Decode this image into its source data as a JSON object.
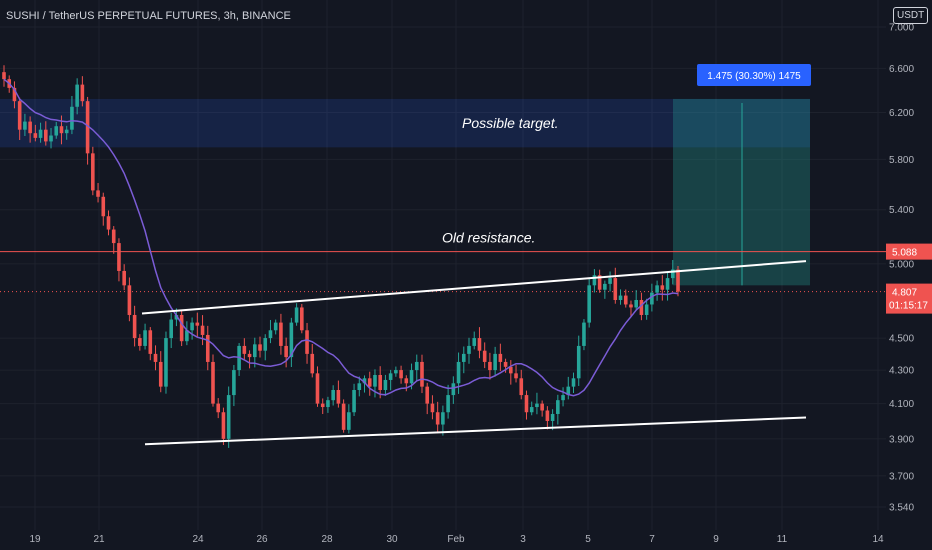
{
  "header": {
    "title": "SUSHI / TetherUS PERPETUAL FUTURES, 3h, BINANCE",
    "unit": "USDT"
  },
  "colors": {
    "background": "#131722",
    "up": "#26a69a",
    "down": "#ef5350",
    "ma": "#7b5cd6",
    "resistance": "#ef5350",
    "target_zone": "#2962ff",
    "projection_zone": "#26a69a",
    "projection_label": "#2962ff",
    "last_price": "#ef5350"
  },
  "chart_data": {
    "type": "candlestick",
    "x_ticks": [
      "19",
      "21",
      "24",
      "26",
      "28",
      "30",
      "Feb",
      "3",
      "5",
      "7",
      "9",
      "11",
      "14"
    ],
    "y_ticks": [
      "7.000",
      "6.600",
      "6.200",
      "5.800",
      "5.400",
      "5.000",
      "4.500",
      "4.300",
      "4.100",
      "3.900",
      "3.700",
      "3.540"
    ],
    "y_tick_values": [
      7.0,
      6.6,
      6.2,
      5.8,
      5.4,
      5.0,
      4.5,
      4.3,
      4.1,
      3.9,
      3.7,
      3.54
    ],
    "scale": "log",
    "annotations": {
      "target_label": "Possible target.",
      "resistance_label": "Old resistance.",
      "measure_label": "1.475 (30.30%) 1475"
    },
    "resistance_level": 5.088,
    "resistance_label_value": "5.088",
    "last_price": 4.807,
    "last_price_label": "4.807",
    "countdown": "01:15:17",
    "target_zone": {
      "from": 5.9,
      "to": 6.32
    },
    "projection_zone": {
      "from": 4.85,
      "to": 6.32
    },
    "trendlines": [
      {
        "name": "upper",
        "from": 4.66,
        "to": 5.02
      },
      {
        "name": "lower",
        "from": 3.87,
        "to": 4.02
      }
    ],
    "close_series": [
      6.5,
      6.42,
      6.3,
      6.05,
      6.12,
      6.02,
      5.98,
      6.05,
      5.95,
      6.0,
      6.08,
      6.02,
      6.05,
      6.25,
      6.45,
      6.3,
      5.85,
      5.55,
      5.5,
      5.35,
      5.25,
      5.15,
      4.95,
      4.85,
      4.65,
      4.5,
      4.45,
      4.55,
      4.4,
      4.35,
      4.2,
      4.5,
      4.62,
      4.65,
      4.48,
      4.55,
      4.6,
      4.58,
      4.52,
      4.35,
      4.1,
      4.05,
      3.9,
      4.15,
      4.3,
      4.45,
      4.4,
      4.38,
      4.46,
      4.42,
      4.5,
      4.55,
      4.6,
      4.45,
      4.38,
      4.6,
      4.7,
      4.55,
      4.4,
      4.28,
      4.1,
      4.08,
      4.12,
      4.18,
      4.1,
      3.95,
      4.05,
      4.18,
      4.22,
      4.25,
      4.2,
      4.27,
      4.18,
      4.24,
      4.28,
      4.3,
      4.25,
      4.22,
      4.3,
      4.35,
      4.2,
      4.1,
      4.05,
      3.98,
      4.05,
      4.15,
      4.22,
      4.35,
      4.4,
      4.45,
      4.5,
      4.42,
      4.35,
      4.3,
      4.4,
      4.35,
      4.32,
      4.28,
      4.25,
      4.15,
      4.05,
      4.08,
      4.1,
      4.06,
      4.0,
      4.04,
      4.12,
      4.15,
      4.2,
      4.25,
      4.45,
      4.6,
      4.85,
      4.92,
      4.82,
      4.86,
      4.9,
      4.75,
      4.78,
      4.72,
      4.7,
      4.75,
      4.65,
      4.72,
      4.8,
      4.85,
      4.82,
      4.9,
      4.96,
      4.807
    ]
  }
}
